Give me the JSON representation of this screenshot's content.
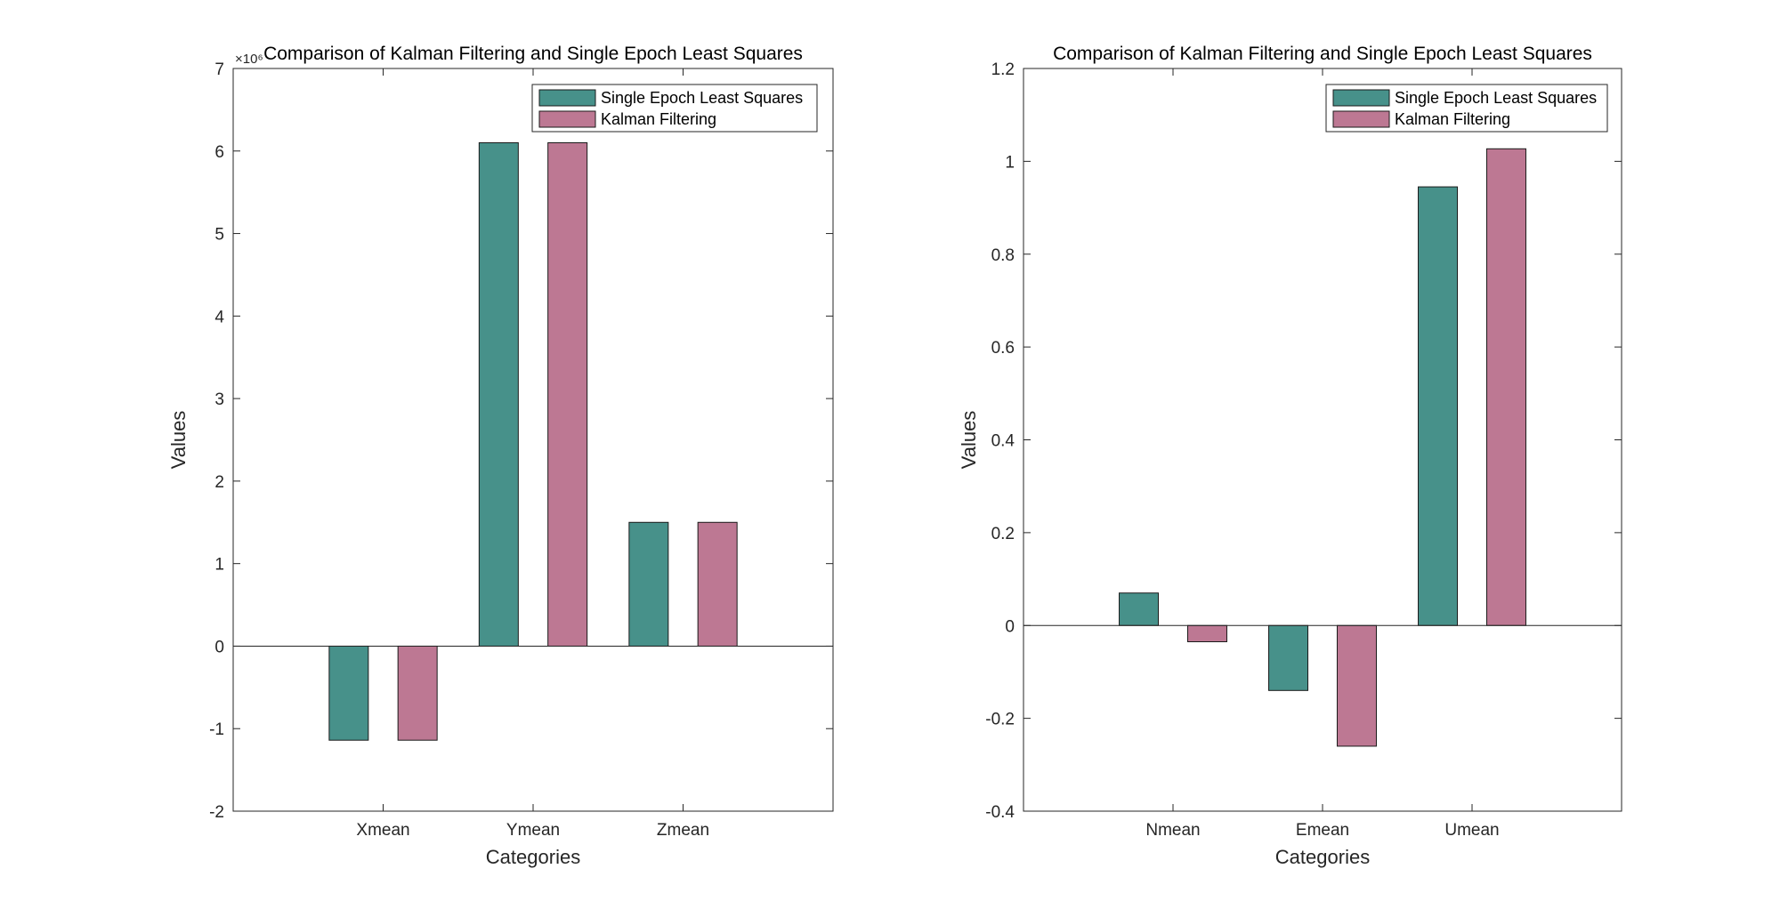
{
  "chart_data": [
    {
      "type": "bar",
      "title": "Comparison of Kalman Filtering and Single Epoch Least Squares",
      "xlabel": "Categories",
      "ylabel": "Values",
      "categories": [
        "Xmean",
        "Ymean",
        "Zmean"
      ],
      "exponent_label": "×10⁶",
      "ylim": [
        -2,
        7
      ],
      "yticks": [
        -2,
        -1,
        0,
        1,
        2,
        3,
        4,
        5,
        6,
        7
      ],
      "legend_position": "top-right",
      "series": [
        {
          "name": "Single Epoch Least Squares",
          "color": "#47918A",
          "values": [
            -1.14,
            6.1,
            1.5
          ]
        },
        {
          "name": "Kalman Filtering",
          "color": "#BD7893",
          "values": [
            -1.14,
            6.1,
            1.5
          ]
        }
      ]
    },
    {
      "type": "bar",
      "title": "Comparison of Kalman Filtering and Single Epoch Least Squares",
      "xlabel": "Categories",
      "ylabel": "Values",
      "categories": [
        "Nmean",
        "Emean",
        "Umean"
      ],
      "exponent_label": "",
      "ylim": [
        -0.4,
        1.2
      ],
      "yticks": [
        -0.4,
        -0.2,
        0,
        0.2,
        0.4,
        0.6,
        0.8,
        1,
        1.2
      ],
      "legend_position": "top-right",
      "series": [
        {
          "name": "Single Epoch Least Squares",
          "color": "#47918A",
          "values": [
            0.07,
            -0.14,
            0.945
          ]
        },
        {
          "name": "Kalman Filtering",
          "color": "#BD7893",
          "values": [
            -0.035,
            -0.26,
            1.027
          ]
        }
      ]
    }
  ]
}
